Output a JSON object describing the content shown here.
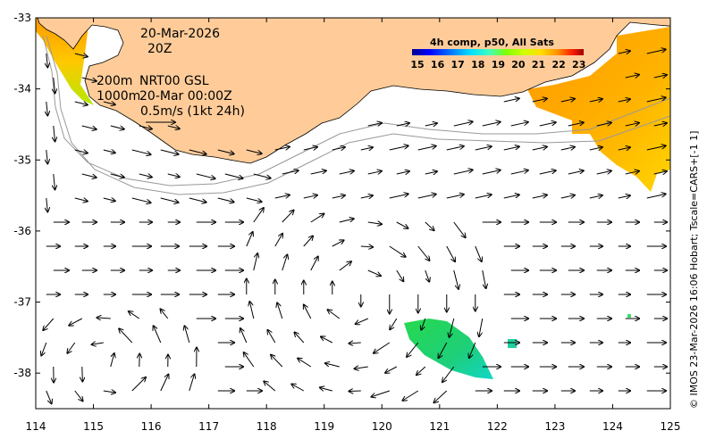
{
  "map": {
    "region": "",
    "lon_range": [
      114,
      125
    ],
    "lat_range": [
      -38.5,
      -33
    ],
    "x_ticks": [
      "114",
      "115",
      "116",
      "117",
      "118",
      "119",
      "120",
      "121",
      "122",
      "123",
      "124",
      "125"
    ],
    "y_ticks": [
      "-33",
      "-34",
      "-35",
      "-36",
      "-37",
      "-38"
    ],
    "land_color": "#ffcc99",
    "grid": false
  },
  "annotations": {
    "date": "20-Mar-2026",
    "time": "20Z",
    "contour_200": "200m",
    "contour_1000": "1000m",
    "product": "NRT00 GSL",
    "product_time": "20-Mar 00:00Z",
    "scale": "0.5m/s (1kt 24h)"
  },
  "colorbar": {
    "title": "4h comp, p50, All Sats",
    "ticks": [
      "15",
      "16",
      "17",
      "18",
      "19",
      "20",
      "21",
      "22",
      "23"
    ],
    "vmin": 15,
    "vmax": 23.5,
    "colors": [
      "#00008f",
      "#0000ff",
      "#0070ff",
      "#00dfff",
      "#40ffbf",
      "#7fff00",
      "#cfff00",
      "#ffdf00",
      "#ff8f00",
      "#ff2000",
      "#a00000"
    ]
  },
  "credit": "© IMOS 23-Mar-2026 16:06 Hobart; Tscale=CARS+[-1 1]"
}
